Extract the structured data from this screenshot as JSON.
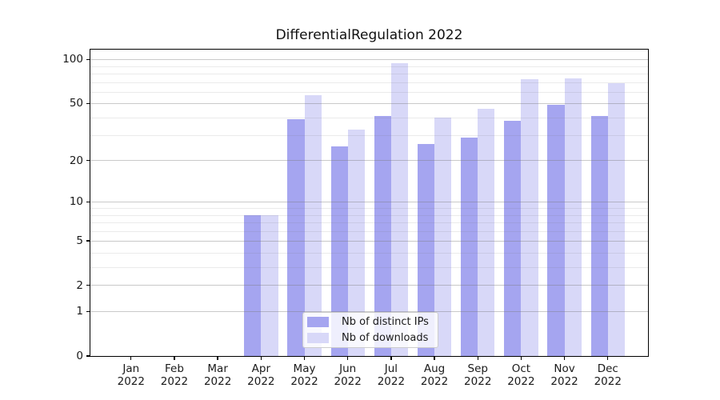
{
  "figure": {
    "title": "DifferentialRegulation 2022"
  },
  "chart_data": {
    "type": "bar",
    "title": "DifferentialRegulation 2022",
    "categories": [
      "Jan 2022",
      "Feb 2022",
      "Mar 2022",
      "Apr 2022",
      "May 2022",
      "Jun 2022",
      "Jul 2022",
      "Aug 2022",
      "Sep 2022",
      "Oct 2022",
      "Nov 2022",
      "Dec 2022"
    ],
    "month_labels": [
      "Jan",
      "Feb",
      "Mar",
      "Apr",
      "May",
      "Jun",
      "Jul",
      "Aug",
      "Sep",
      "Oct",
      "Nov",
      "Dec"
    ],
    "year": "2022",
    "series": [
      {
        "name": "Nb of distinct IPs",
        "color": "#a5a5f0",
        "values": [
          0,
          0,
          0,
          8,
          39,
          25,
          41,
          26,
          29,
          38,
          49,
          41
        ]
      },
      {
        "name": "Nb of downloads",
        "color": "#d8d8f8",
        "values": [
          0,
          0,
          0,
          8,
          57,
          33,
          95,
          40,
          46,
          73,
          74,
          69
        ]
      }
    ],
    "xlabel": "",
    "ylabel": "",
    "yscale": "log1p",
    "ylim": [
      0,
      117
    ],
    "yticks_major": [
      0,
      1,
      2,
      5,
      10,
      20,
      50,
      100
    ],
    "yticks_minor": [
      3,
      4,
      6,
      7,
      8,
      9,
      30,
      40,
      60,
      70,
      80,
      90
    ],
    "grid": "both",
    "legend_position": "lower center"
  },
  "legend": {
    "items": [
      {
        "label": "Nb of distinct IPs",
        "color": "#a5a5f0"
      },
      {
        "label": "Nb of downloads",
        "color": "#d8d8f8"
      }
    ]
  },
  "colors": {
    "background": "#ffffff",
    "spine": "#000000",
    "grid": "#b0b0b0",
    "text": "#1a1a1a"
  }
}
